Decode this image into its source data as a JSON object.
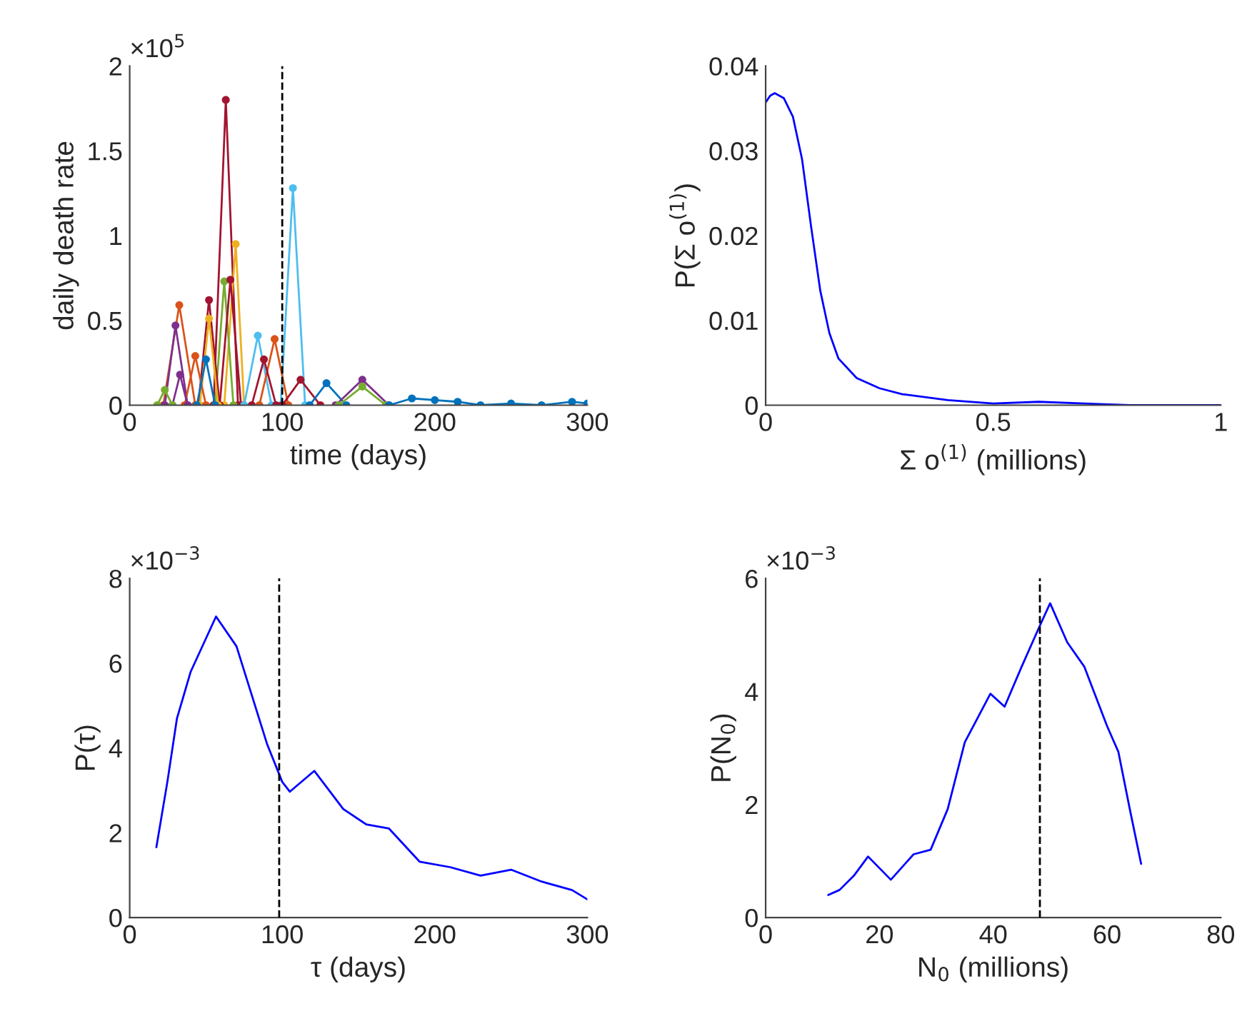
{
  "chart_data": [
    {
      "type": "line",
      "xlabel": "time (days)",
      "ylabel": "daily death rate",
      "annotations": [
        "×10$^{5}$"
      ],
      "marker": "circle",
      "line_style": "solid",
      "xlim": [
        0,
        300
      ],
      "xticks": [
        0,
        100,
        200,
        300
      ],
      "ylim": [
        0,
        2
      ],
      "yticks": [
        0,
        0.5,
        1,
        1.5,
        2
      ],
      "ref_lines": [
        {
          "axis": "x",
          "value": 100,
          "color": "#000000",
          "line_style": "dashed"
        }
      ],
      "series": [
        {
          "color": "#a2142f",
          "x": [
            55,
            63,
            71
          ],
          "values": [
            0,
            1.8,
            0
          ]
        },
        {
          "color": "#4dbeee",
          "x": [
            99,
            107,
            115
          ],
          "values": [
            0,
            1.28,
            0
          ]
        },
        {
          "color": "#edb120",
          "x": [
            62,
            69.5,
            75
          ],
          "values": [
            0,
            0.95,
            0
          ]
        },
        {
          "color": "#77ac30",
          "x": [
            56,
            62,
            68
          ],
          "values": [
            0,
            0.73,
            0
          ]
        },
        {
          "color": "#a2142f",
          "x": [
            59,
            66,
            73
          ],
          "values": [
            0,
            0.74,
            0
          ]
        },
        {
          "color": "#d95319",
          "x": [
            22,
            32.5,
            43
          ],
          "values": [
            0,
            0.59,
            0
          ]
        },
        {
          "color": "#7e2f8e",
          "x": [
            23,
            30,
            38
          ],
          "values": [
            0,
            0.47,
            0
          ]
        },
        {
          "color": "#a2142f",
          "x": [
            45,
            52,
            59
          ],
          "values": [
            0,
            0.62,
            0
          ]
        },
        {
          "color": "#edb120",
          "x": [
            46,
            52,
            58
          ],
          "values": [
            0,
            0.51,
            0
          ]
        },
        {
          "color": "#4dbeee",
          "x": [
            75,
            84,
            93
          ],
          "values": [
            0,
            0.41,
            0
          ]
        },
        {
          "color": "#d95319",
          "x": [
            85,
            95,
            104
          ],
          "values": [
            0,
            0.39,
            0
          ]
        },
        {
          "color": "#d95319",
          "x": [
            36,
            43,
            50
          ],
          "values": [
            0,
            0.29,
            0
          ]
        },
        {
          "color": "#0072bd",
          "x": [
            44,
            50,
            56
          ],
          "values": [
            0,
            0.27,
            0
          ]
        },
        {
          "color": "#a2142f",
          "x": [
            80,
            88,
            96
          ],
          "values": [
            0,
            0.27,
            0
          ]
        },
        {
          "color": "#a2142f",
          "x": [
            100,
            112,
            125
          ],
          "values": [
            0,
            0.15,
            0
          ]
        },
        {
          "color": "#0072bd",
          "x": [
            118,
            129,
            142
          ],
          "values": [
            0,
            0.13,
            0
          ]
        },
        {
          "color": "#7e2f8e",
          "x": [
            135,
            152.5,
            170
          ],
          "values": [
            0,
            0.15,
            0
          ]
        },
        {
          "color": "#77ac30",
          "x": [
            137,
            152.5,
            168
          ],
          "values": [
            0,
            0.11,
            0
          ]
        },
        {
          "color": "#7e2f8e",
          "x": [
            28,
            33,
            38
          ],
          "values": [
            0,
            0.18,
            0
          ]
        },
        {
          "color": "#77ac30",
          "x": [
            18,
            23,
            28
          ],
          "values": [
            0,
            0.09,
            0
          ]
        },
        {
          "color": "#0072bd",
          "x": [
            170,
            185,
            200,
            215,
            230,
            250,
            270,
            290,
            300
          ],
          "values": [
            0,
            0.04,
            0.03,
            0.02,
            0,
            0.01,
            0,
            0.02,
            0.01
          ]
        }
      ]
    },
    {
      "type": "line",
      "xlabel": "Σ o$^{(1)}$ (millions)",
      "ylabel": "P(Σ o$^{(1)}$)",
      "xlim": [
        0,
        1
      ],
      "xticks": [
        0,
        0.5,
        1
      ],
      "ylim": [
        0,
        0.04
      ],
      "yticks": [
        0,
        0.01,
        0.02,
        0.03,
        0.04
      ],
      "series": [
        {
          "color": "#0000ff",
          "x": [
            0,
            0.01,
            0.02,
            0.04,
            0.06,
            0.08,
            0.1,
            0.12,
            0.14,
            0.16,
            0.2,
            0.25,
            0.3,
            0.4,
            0.5,
            0.6,
            0.7,
            0.8,
            1.0
          ],
          "values": [
            0.0357,
            0.0365,
            0.0368,
            0.0362,
            0.034,
            0.029,
            0.021,
            0.0135,
            0.0085,
            0.0055,
            0.0032,
            0.002,
            0.0013,
            0.0006,
            0.0002,
            0.0004,
            0.0002,
            0.0,
            0.0
          ]
        }
      ]
    },
    {
      "type": "line",
      "xlabel": "τ (days)",
      "ylabel": "P(τ)",
      "annotations": [
        "×10$^{−3}$"
      ],
      "xlim": [
        0,
        300
      ],
      "xticks": [
        0,
        100,
        200,
        300
      ],
      "ylim": [
        0,
        8
      ],
      "yticks": [
        0,
        2,
        4,
        6,
        8
      ],
      "ref_lines": [
        {
          "axis": "x",
          "value": 98,
          "color": "#000000",
          "line_style": "dashed"
        }
      ],
      "series": [
        {
          "color": "#0000ff",
          "x": [
            17.5,
            24.7,
            31,
            40,
            56.6,
            70,
            80,
            90,
            100,
            105,
            121,
            140,
            155,
            170,
            190,
            210,
            230,
            250,
            270,
            290,
            300
          ],
          "values": [
            1.66,
            3.2,
            4.7,
            5.8,
            7.1,
            6.4,
            5.25,
            4.1,
            3.2,
            2.97,
            3.46,
            2.56,
            2.2,
            2.1,
            1.32,
            1.19,
            0.99,
            1.13,
            0.85,
            0.65,
            0.43
          ]
        }
      ]
    },
    {
      "type": "line",
      "xlabel": "N$_{0}$ (millions)",
      "ylabel": "P(N$_{0}$)",
      "annotations": [
        "×10$^{−3}$"
      ],
      "xlim": [
        0,
        80
      ],
      "xticks": [
        0,
        20,
        40,
        60,
        80
      ],
      "ylim": [
        0,
        6
      ],
      "yticks": [
        0,
        2,
        4,
        6
      ],
      "ref_lines": [
        {
          "axis": "x",
          "value": 48.2,
          "color": "#000000",
          "line_style": "dashed"
        }
      ],
      "series": [
        {
          "color": "#0000ff",
          "x": [
            11,
            13,
            15.5,
            18,
            22,
            26,
            29,
            32,
            35,
            39.5,
            42,
            45,
            48,
            50,
            53,
            56,
            60,
            62,
            64,
            66
          ],
          "values": [
            0.4,
            0.49,
            0.74,
            1.08,
            0.67,
            1.12,
            1.2,
            1.92,
            3.1,
            3.96,
            3.73,
            4.44,
            5.12,
            5.56,
            4.87,
            4.44,
            3.39,
            2.93,
            1.92,
            0.95
          ]
        }
      ]
    }
  ]
}
